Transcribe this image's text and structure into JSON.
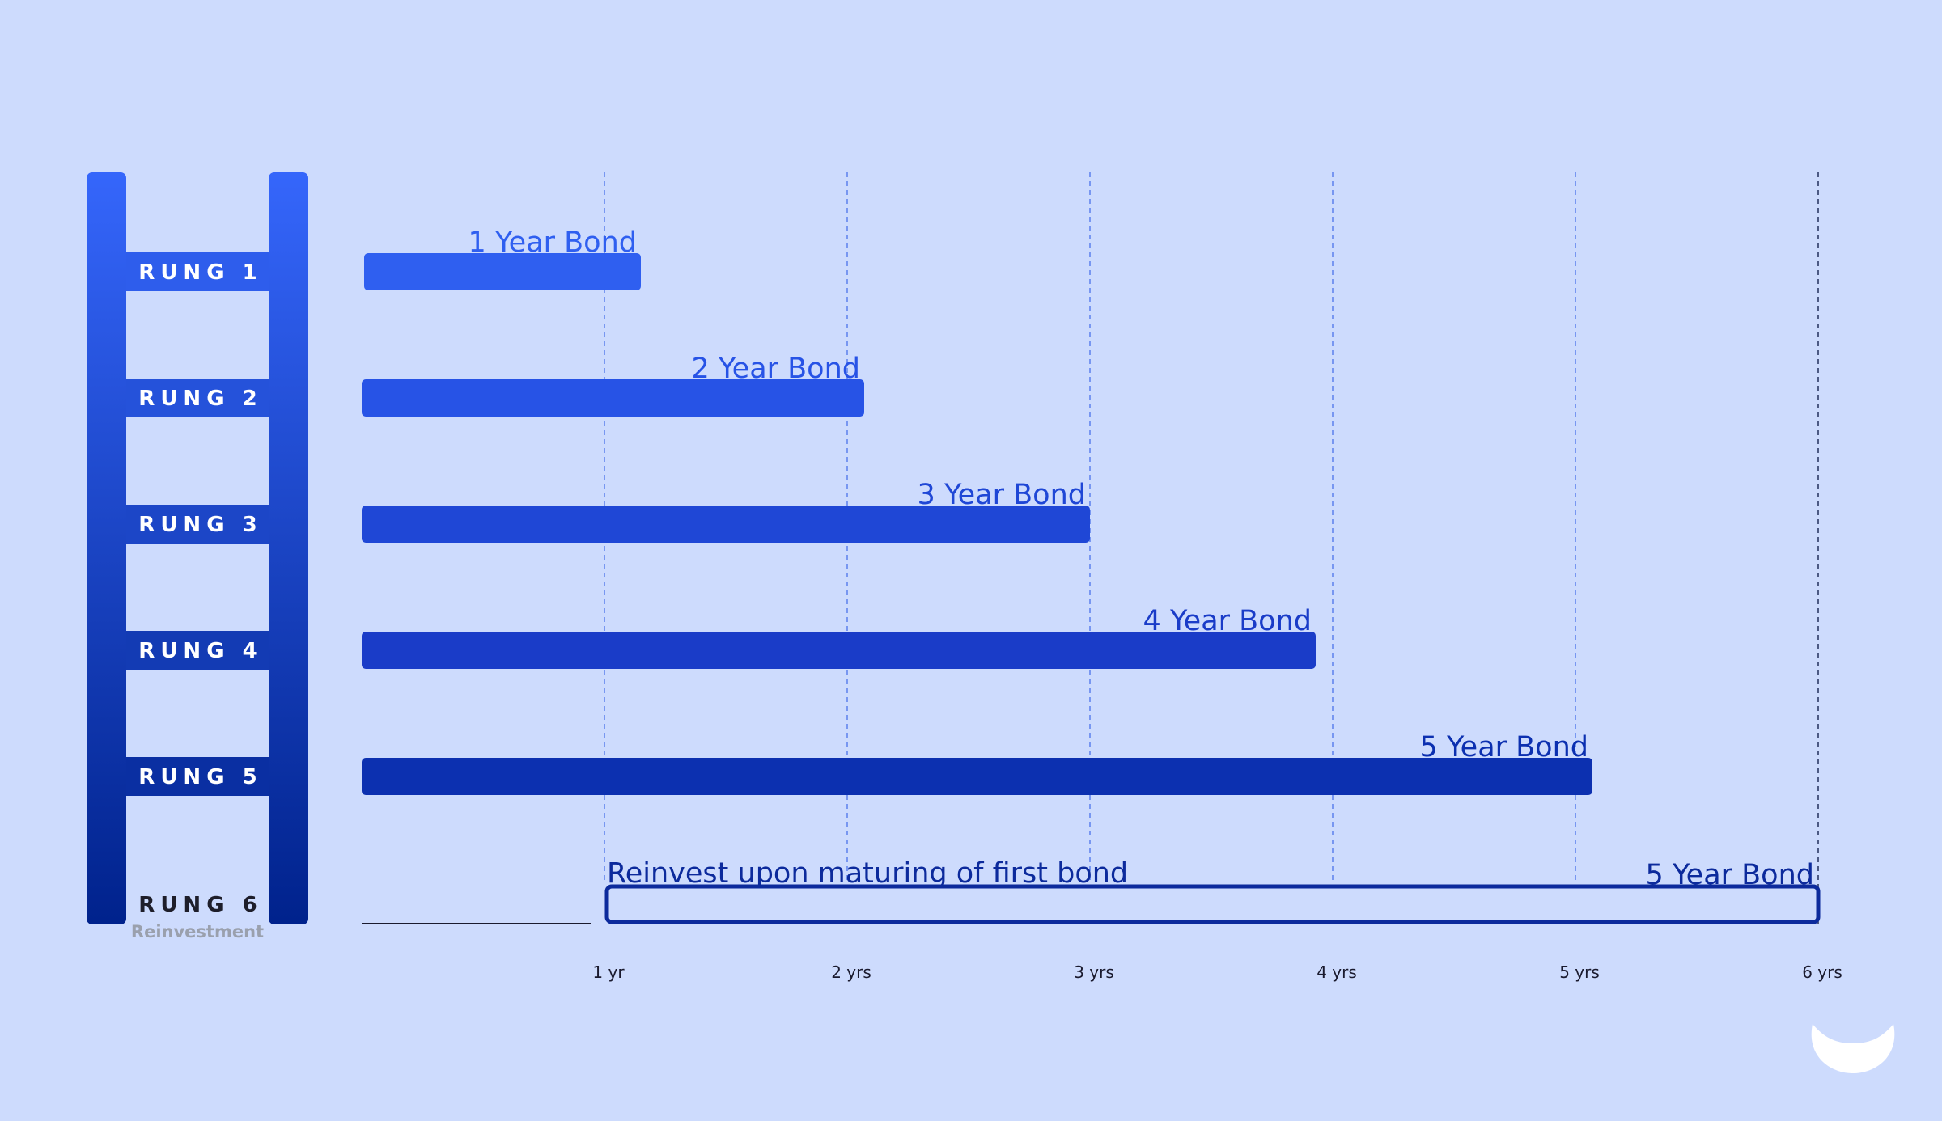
{
  "ladder": {
    "rungs": [
      {
        "label": "RUNG 1",
        "sublabel": ""
      },
      {
        "label": "RUNG 2",
        "sublabel": ""
      },
      {
        "label": "RUNG 3",
        "sublabel": ""
      },
      {
        "label": "RUNG 4",
        "sublabel": ""
      },
      {
        "label": "RUNG 5",
        "sublabel": ""
      },
      {
        "label": "RUNG 6",
        "sublabel": "Reinvestment"
      }
    ]
  },
  "timeline": {
    "ticks": [
      {
        "value": 1,
        "label": "1 yr"
      },
      {
        "value": 2,
        "label": "2 yrs"
      },
      {
        "value": 3,
        "label": "3 yrs"
      },
      {
        "value": 4,
        "label": "4 yrs"
      },
      {
        "value": 5,
        "label": "5 yrs"
      },
      {
        "value": 6,
        "label": "6 yrs"
      }
    ],
    "max_years": 6
  },
  "bonds": [
    {
      "rung": 1,
      "start": 0,
      "end": 1.15,
      "label": "1 Year Bond",
      "color": "#2f5ff0",
      "style": "filled"
    },
    {
      "rung": 2,
      "start": 0,
      "end": 2.07,
      "label": "2 Year Bond",
      "color": "#2753e6",
      "style": "filled"
    },
    {
      "rung": 3,
      "start": 0,
      "end": 3.0,
      "label": "3 Year Bond",
      "color": "#1f47d6",
      "style": "filled"
    },
    {
      "rung": 4,
      "start": 0,
      "end": 3.93,
      "label": "4 Year Bond",
      "color": "#1a3cc8",
      "style": "filled"
    },
    {
      "rung": 5,
      "start": 0,
      "end": 5.07,
      "label": "5 Year Bond",
      "color": "#0c30b0",
      "style": "filled"
    },
    {
      "rung": 6,
      "start": 1.0,
      "end": 6.0,
      "label": "5 Year Bond",
      "color": "#0c2a9c",
      "style": "outline",
      "note": "Reinvest upon maturing of first bond"
    }
  ],
  "colors": {
    "background": "#cddbfd",
    "ladder_top": "#3566fb",
    "ladder_bottom": "#00228c",
    "rung_text": "#ffffff",
    "rung6_text": "#1e1e2a",
    "gridline": "#3f6ae8",
    "gridline_last": "#2d3a66",
    "baseline": "#1a1a2e",
    "logo": "#ffffff"
  },
  "logo": {
    "icon": "smile-logo-icon"
  }
}
